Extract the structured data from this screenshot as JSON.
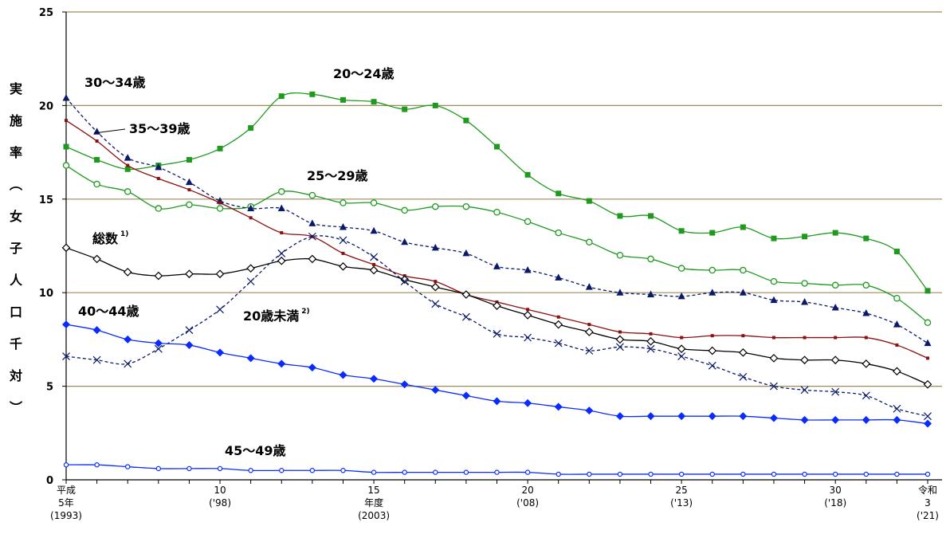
{
  "chart_data": {
    "type": "line",
    "ylabel_chars": [
      "実",
      "施",
      "率",
      "︵",
      "女",
      "子",
      "人",
      "口",
      "千",
      "対",
      "︶"
    ],
    "ylim": [
      0,
      25
    ],
    "yticks": [
      "0",
      "5",
      "10",
      "15",
      "20",
      "25"
    ],
    "grid": true,
    "x_years": [
      1993,
      1994,
      1995,
      1996,
      1997,
      1998,
      1999,
      2000,
      2001,
      2002,
      2003,
      2004,
      2005,
      2006,
      2007,
      2008,
      2009,
      2010,
      2011,
      2012,
      2013,
      2014,
      2015,
      2016,
      2017,
      2018,
      2019,
      2020,
      2021
    ],
    "xtick_labels": [
      {
        "year": 1993,
        "lines": [
          "平成",
          "5年",
          "(1993)"
        ]
      },
      {
        "year": 1998,
        "lines": [
          "10",
          "('98)"
        ]
      },
      {
        "year": 2003,
        "lines": [
          "15",
          "年度",
          "(2003)"
        ]
      },
      {
        "year": 2008,
        "lines": [
          "20",
          "('08)"
        ]
      },
      {
        "year": 2013,
        "lines": [
          "25",
          "('13)"
        ]
      },
      {
        "year": 2018,
        "lines": [
          "30",
          "('18)"
        ]
      },
      {
        "year": 2021,
        "lines": [
          "令和",
          "3",
          "('21)"
        ]
      }
    ],
    "series": [
      {
        "name": "20～24歳",
        "color": "#1f9a1f",
        "dash": "",
        "marker": "square",
        "values": [
          17.8,
          17.1,
          16.6,
          16.8,
          17.1,
          17.7,
          18.8,
          20.5,
          20.6,
          20.3,
          20.2,
          19.8,
          20.0,
          19.2,
          17.8,
          16.3,
          15.3,
          14.9,
          14.1,
          14.1,
          13.3,
          13.2,
          13.5,
          12.9,
          13.0,
          13.2,
          12.9,
          12.2,
          10.1
        ]
      },
      {
        "name": "25～29歳",
        "color": "#1f9a1f",
        "dash": "",
        "marker": "circle-open",
        "values": [
          16.8,
          15.8,
          15.4,
          14.5,
          14.7,
          14.5,
          14.6,
          15.4,
          15.2,
          14.8,
          14.8,
          14.4,
          14.6,
          14.6,
          14.3,
          13.8,
          13.2,
          12.7,
          12.0,
          11.8,
          11.3,
          11.2,
          11.2,
          10.6,
          10.5,
          10.4,
          10.4,
          9.7,
          8.4
        ]
      },
      {
        "name": "30～34歳",
        "color": "#0a1a6b",
        "dash": "4,3",
        "marker": "triangle",
        "values": [
          20.4,
          18.6,
          17.2,
          16.7,
          15.9,
          14.9,
          14.5,
          14.5,
          13.7,
          13.5,
          13.3,
          12.7,
          12.4,
          12.1,
          11.4,
          11.2,
          10.8,
          10.3,
          10.0,
          9.9,
          9.8,
          10.0,
          10.0,
          9.6,
          9.5,
          9.2,
          8.9,
          8.3,
          7.3
        ]
      },
      {
        "name": "35～39歳",
        "color": "#8b1010",
        "dash": "",
        "marker": "small-square",
        "values": [
          19.2,
          18.1,
          16.8,
          16.1,
          15.5,
          14.8,
          14.0,
          13.2,
          13.0,
          12.1,
          11.5,
          10.9,
          10.6,
          9.9,
          9.5,
          9.1,
          8.7,
          8.3,
          7.9,
          7.8,
          7.6,
          7.7,
          7.7,
          7.6,
          7.6,
          7.6,
          7.6,
          7.2,
          6.5
        ]
      },
      {
        "name": "総数",
        "color": "#000000",
        "dash": "",
        "marker": "diamond-open",
        "values": [
          12.4,
          11.8,
          11.1,
          10.9,
          11.0,
          11.0,
          11.3,
          11.7,
          11.8,
          11.4,
          11.2,
          10.7,
          10.3,
          9.9,
          9.3,
          8.8,
          8.3,
          7.9,
          7.5,
          7.4,
          7.0,
          6.9,
          6.8,
          6.5,
          6.4,
          6.4,
          6.2,
          5.8,
          5.1
        ]
      },
      {
        "name": "20歳未満",
        "color": "#0a1a6b",
        "dash": "4,3",
        "marker": "x",
        "values": [
          6.6,
          6.4,
          6.2,
          7.0,
          8.0,
          9.1,
          10.6,
          12.1,
          13.0,
          12.8,
          11.9,
          10.6,
          9.4,
          8.7,
          7.8,
          7.6,
          7.3,
          6.9,
          7.1,
          7.0,
          6.6,
          6.1,
          5.5,
          5.0,
          4.8,
          4.7,
          4.5,
          3.8,
          3.4
        ]
      },
      {
        "name": "40～44歳",
        "color": "#0a2bff",
        "dash": "",
        "marker": "diamond",
        "values": [
          8.3,
          8.0,
          7.5,
          7.3,
          7.2,
          6.8,
          6.5,
          6.2,
          6.0,
          5.6,
          5.4,
          5.1,
          4.8,
          4.5,
          4.2,
          4.1,
          3.9,
          3.7,
          3.4,
          3.4,
          3.4,
          3.4,
          3.4,
          3.3,
          3.2,
          3.2,
          3.2,
          3.2,
          3.0
        ]
      },
      {
        "name": "45～49歳",
        "color": "#0a2bff",
        "dash": "",
        "marker": "circle-small",
        "values": [
          0.8,
          0.8,
          0.7,
          0.6,
          0.6,
          0.6,
          0.5,
          0.5,
          0.5,
          0.5,
          0.4,
          0.4,
          0.4,
          0.4,
          0.4,
          0.4,
          0.3,
          0.3,
          0.3,
          0.3,
          0.3,
          0.3,
          0.3,
          0.3,
          0.3,
          0.3,
          0.3,
          0.3,
          0.3
        ]
      }
    ],
    "annotations": [
      {
        "key": "a2024",
        "text": "20～24歳",
        "sup": ""
      },
      {
        "key": "a2529",
        "text": "25～29歳",
        "sup": ""
      },
      {
        "key": "a3034",
        "text": "30～34歳",
        "sup": ""
      },
      {
        "key": "a3539",
        "text": "35～39歳",
        "sup": ""
      },
      {
        "key": "atotal",
        "text": "総数",
        "sup": "1)"
      },
      {
        "key": "aunder20",
        "text": "20歳未満",
        "sup": "2)"
      },
      {
        "key": "a4044",
        "text": "40～44歳",
        "sup": ""
      },
      {
        "key": "a4549",
        "text": "45～49歳",
        "sup": ""
      }
    ],
    "gridline_color": "#9c8a5a"
  }
}
